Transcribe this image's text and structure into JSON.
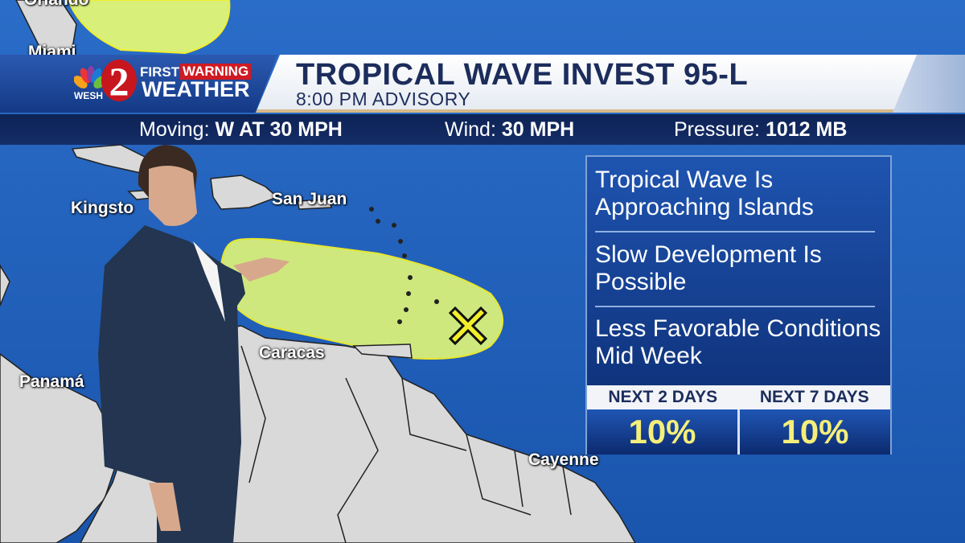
{
  "map": {
    "labels": {
      "orlando": "Orlando",
      "miami": "Miami",
      "kingston": "Kingsto",
      "san_juan": "San Juan",
      "caracas": "Caracas",
      "panama": "Panamá",
      "cayenne": "Cayenne"
    },
    "colors": {
      "ocean": "#1f5fb8",
      "land": "#d9d9d9",
      "outlook_area": "#d8f07a",
      "x_marker": "#f2ee2a"
    },
    "marker_icon": "x-development-marker"
  },
  "brand": {
    "station": "WESH",
    "channel": "2",
    "line1_a": "FIRST",
    "line1_b": "WARNING",
    "line2": "WEATHER"
  },
  "header": {
    "title": "TROPICAL WAVE INVEST 95-L",
    "subtitle": "8:00 PM ADVISORY"
  },
  "stats": {
    "moving_label": "Moving:",
    "moving_value": "W AT 30 MPH",
    "wind_label": "Wind:",
    "wind_value": "30 MPH",
    "pressure_label": "Pressure:",
    "pressure_value": "1012 MB"
  },
  "panel": {
    "items": [
      "Tropical Wave Is Approaching Islands",
      "Slow Development Is Possible",
      "Less Favorable Conditions Mid Week"
    ],
    "odds": [
      {
        "label": "NEXT 2 DAYS",
        "value": "10%"
      },
      {
        "label": "NEXT 7 DAYS",
        "value": "10%"
      }
    ]
  }
}
